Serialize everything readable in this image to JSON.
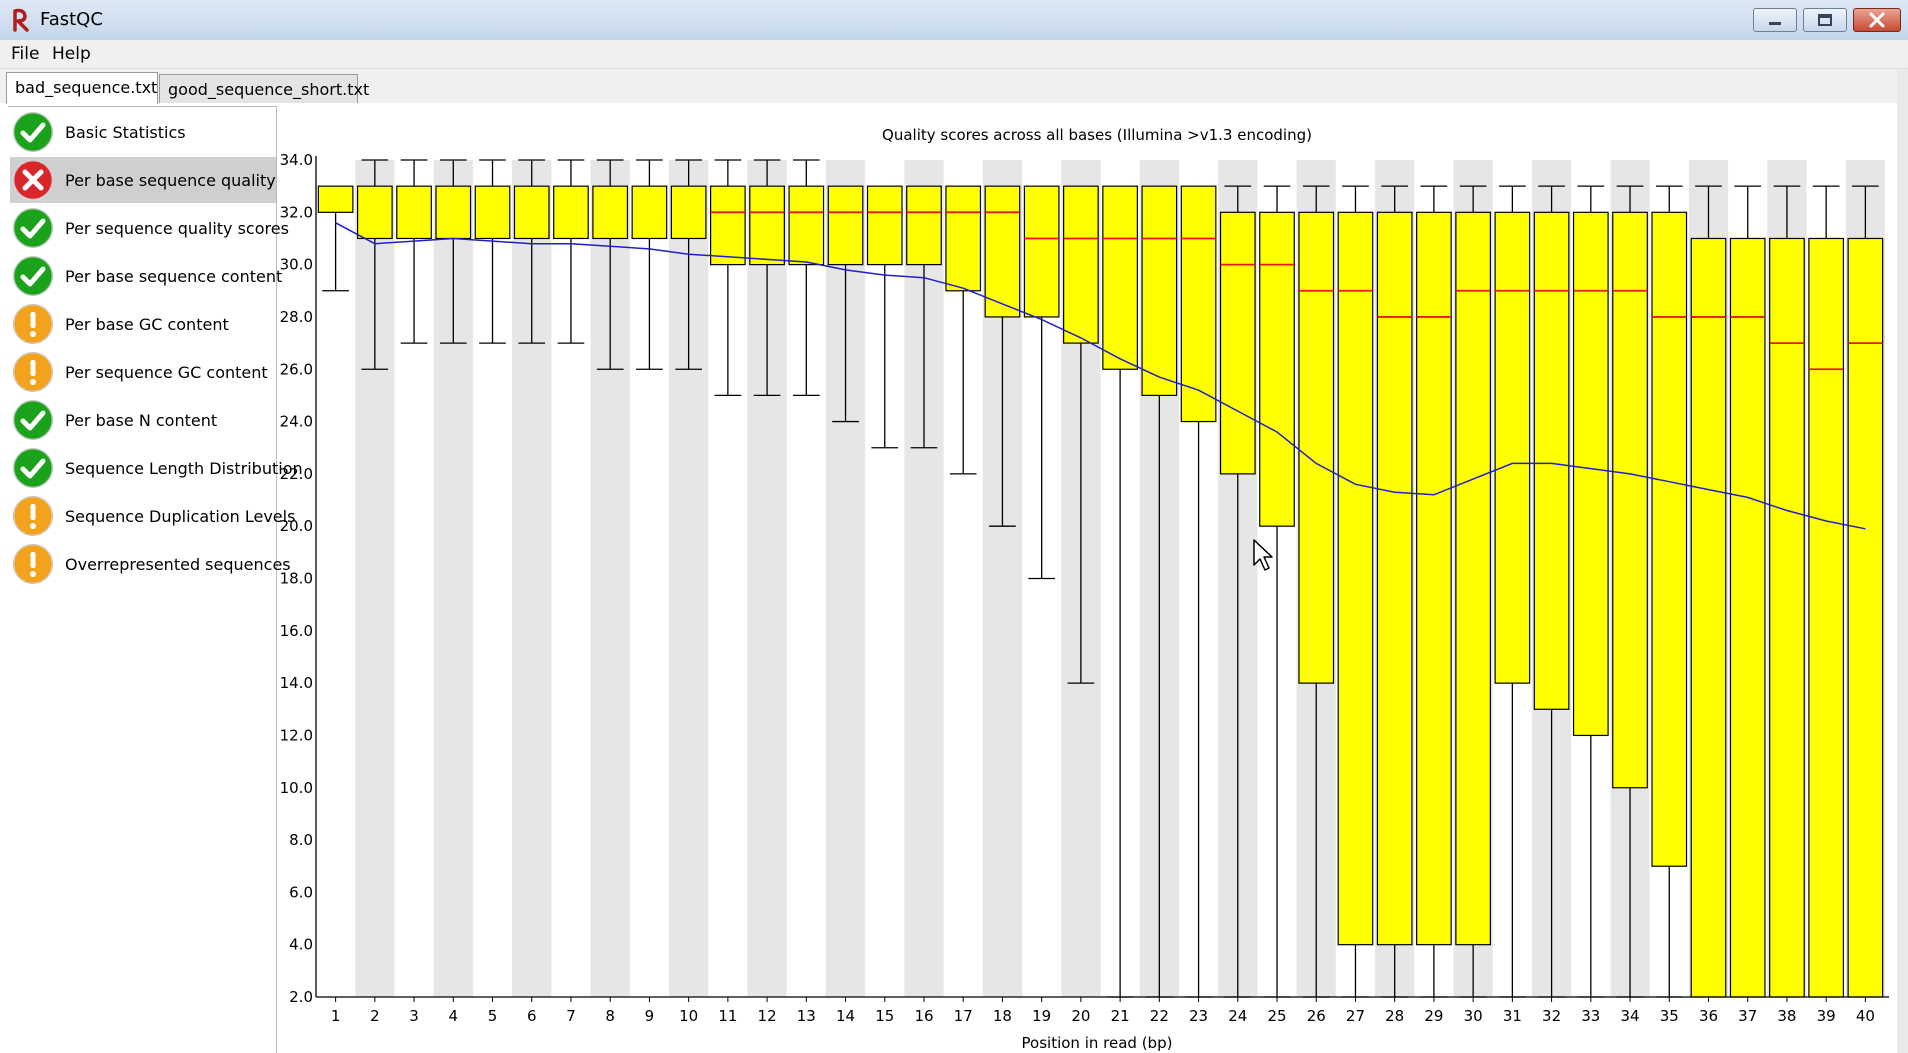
{
  "window": {
    "title": "FastQC"
  },
  "menu": [
    "File",
    "Help"
  ],
  "tabs": [
    {
      "label": "bad_sequence.txt",
      "active": true
    },
    {
      "label": "good_sequence_short.txt",
      "active": false
    }
  ],
  "modules": [
    {
      "label": "Basic Statistics",
      "status": "pass"
    },
    {
      "label": "Per base sequence quality",
      "status": "fail",
      "selected": true
    },
    {
      "label": "Per sequence quality scores",
      "status": "pass"
    },
    {
      "label": "Per base sequence content",
      "status": "pass"
    },
    {
      "label": "Per base GC content",
      "status": "warn"
    },
    {
      "label": "Per sequence GC content",
      "status": "warn"
    },
    {
      "label": "Per base N content",
      "status": "pass"
    },
    {
      "label": "Sequence Length Distribution",
      "status": "pass"
    },
    {
      "label": "Sequence Duplication Levels",
      "status": "warn"
    },
    {
      "label": "Overrepresented sequences",
      "status": "warn"
    }
  ],
  "colors": {
    "pass": "#1aa31a",
    "fail": "#d8262b",
    "warn": "#f3a21b",
    "box": "#ffff00",
    "median": "#e8141e",
    "mean": "#2020c8",
    "band": "#e6e6e6"
  },
  "chart_data": {
    "type": "boxplot",
    "title": "Quality scores across all bases (Illumina >v1.3 encoding)",
    "xlabel": "Position in read (bp)",
    "ylabel": "",
    "ylim": [
      2.0,
      34.0
    ],
    "yticks": [
      "34.0",
      "32.0",
      "30.0",
      "28.0",
      "26.0",
      "24.0",
      "22.0",
      "20.0",
      "18.0",
      "16.0",
      "14.0",
      "12.0",
      "10.0",
      "8.0",
      "6.0",
      "4.0",
      "2.0"
    ],
    "categories": [
      "1",
      "2",
      "3",
      "4",
      "5",
      "6",
      "7",
      "8",
      "9",
      "10",
      "11",
      "12",
      "13",
      "14",
      "15",
      "16",
      "17",
      "18",
      "19",
      "20",
      "21",
      "22",
      "23",
      "24",
      "25",
      "26",
      "27",
      "28",
      "29",
      "30",
      "31",
      "32",
      "33",
      "34",
      "35",
      "36",
      "37",
      "38",
      "39",
      "40"
    ],
    "lower_whisker": [
      29,
      26,
      27,
      27,
      27,
      27,
      27,
      26,
      26,
      26,
      25,
      25,
      25,
      24,
      23,
      23,
      22,
      20,
      18,
      14,
      2,
      2,
      2,
      2,
      2,
      2,
      2,
      2,
      2,
      2,
      2,
      2,
      2,
      2,
      2,
      2,
      2,
      2,
      2,
      2
    ],
    "q1": [
      32,
      31,
      31,
      31,
      31,
      31,
      31,
      31,
      31,
      31,
      30,
      30,
      30,
      30,
      30,
      30,
      29,
      28,
      28,
      27,
      26,
      25,
      24,
      22,
      20,
      14,
      4,
      4,
      4,
      4,
      14,
      13,
      12,
      10,
      7,
      2,
      2,
      2,
      2,
      2
    ],
    "median": [
      33,
      33,
      33,
      33,
      33,
      33,
      33,
      33,
      33,
      33,
      32,
      32,
      32,
      32,
      32,
      32,
      32,
      32,
      31,
      31,
      31,
      31,
      31,
      30,
      30,
      29,
      29,
      28,
      28,
      29,
      29,
      29,
      29,
      29,
      28,
      28,
      28,
      27,
      26,
      27
    ],
    "q3": [
      33,
      33,
      33,
      33,
      33,
      33,
      33,
      33,
      33,
      33,
      33,
      33,
      33,
      33,
      33,
      33,
      33,
      33,
      33,
      33,
      33,
      33,
      33,
      32,
      32,
      32,
      32,
      32,
      32,
      32,
      32,
      32,
      32,
      32,
      32,
      31,
      31,
      31,
      31,
      31
    ],
    "upper_whisker": [
      33,
      34,
      34,
      34,
      34,
      34,
      34,
      34,
      34,
      34,
      34,
      34,
      34,
      33,
      33,
      33,
      33,
      33,
      33,
      33,
      33,
      33,
      33,
      33,
      33,
      33,
      33,
      33,
      33,
      33,
      33,
      33,
      33,
      33,
      33,
      33,
      33,
      33,
      33,
      33
    ],
    "mean": [
      31.6,
      30.8,
      30.9,
      31.0,
      30.9,
      30.8,
      30.8,
      30.7,
      30.6,
      30.4,
      30.3,
      30.2,
      30.1,
      29.8,
      29.6,
      29.5,
      29.1,
      28.5,
      27.9,
      27.2,
      26.4,
      25.7,
      25.2,
      24.4,
      23.6,
      22.4,
      21.6,
      21.3,
      21.2,
      21.8,
      22.4,
      22.4,
      22.2,
      22.0,
      21.7,
      21.4,
      21.1,
      20.6,
      20.2,
      19.9
    ],
    "grid": false
  }
}
